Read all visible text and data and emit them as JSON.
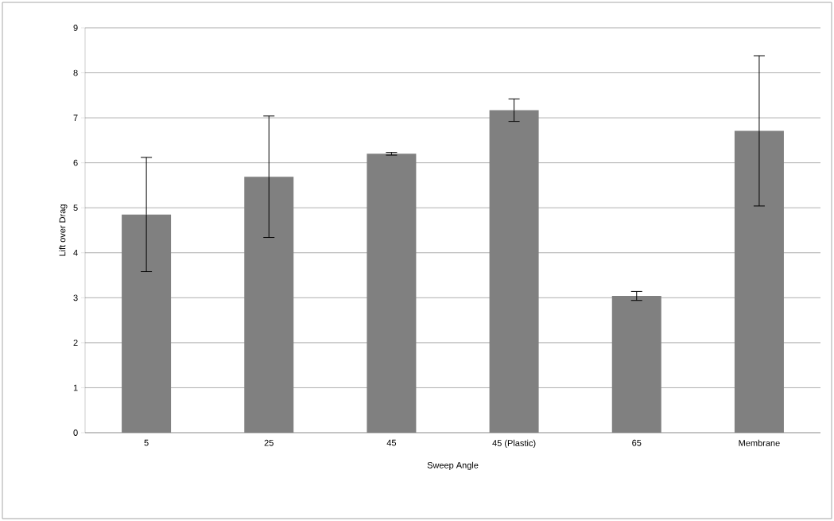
{
  "chart_data": {
    "type": "bar",
    "xlabel": "Sweep Angle",
    "ylabel": "Lift over Drag",
    "categories": [
      "5",
      "25",
      "45",
      "45 (Plastic)",
      "65",
      "Membrane"
    ],
    "values": [
      4.85,
      5.69,
      6.2,
      7.17,
      3.04,
      6.71
    ],
    "errors": [
      1.27,
      1.35,
      0.03,
      0.25,
      0.1,
      1.67
    ],
    "color": "#808080",
    "ylim": [
      0,
      9
    ],
    "yticks": [
      0,
      1,
      2,
      3,
      4,
      5,
      6,
      7,
      8,
      9
    ],
    "grid": "y"
  }
}
